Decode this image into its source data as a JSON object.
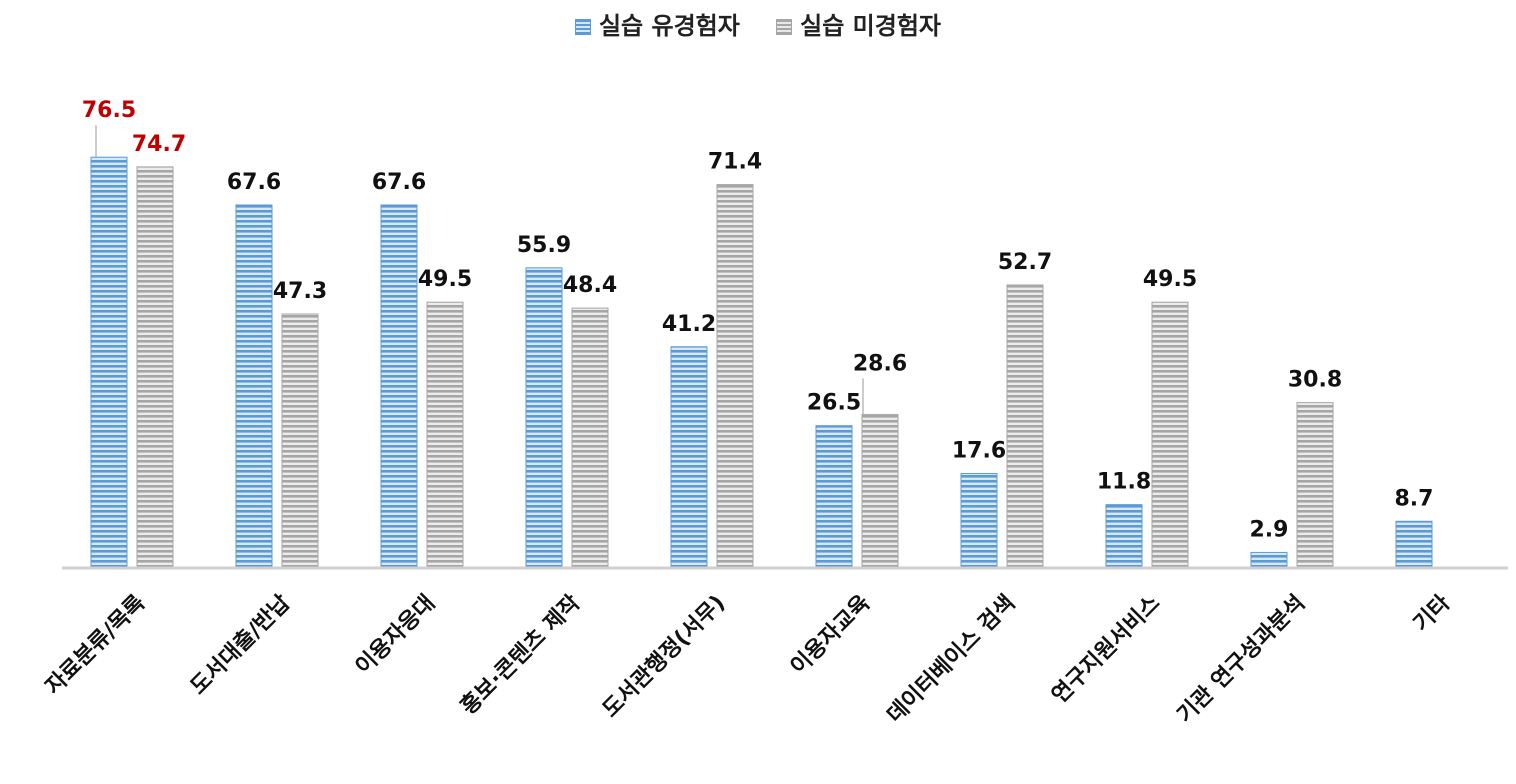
{
  "chart_data": {
    "type": "bar",
    "categories": [
      "자료분류/목록",
      "도서대출/반납",
      "이용자응대",
      "홍보·콘텐츠 제작",
      "도서관행정(서무)",
      "이용자교육",
      "데이터베이스 검색",
      "연구지원서비스",
      "기관 연구성과분석",
      "기타"
    ],
    "series": [
      {
        "name": "실습 유경험자",
        "color": "#5b9bd5",
        "values": [
          76.5,
          67.6,
          67.6,
          55.9,
          41.2,
          26.5,
          17.6,
          11.8,
          2.9,
          8.7
        ]
      },
      {
        "name": "실습 미경험자",
        "color": "#a6a6a6",
        "values": [
          74.7,
          47.3,
          49.5,
          48.4,
          71.4,
          28.6,
          52.7,
          49.5,
          30.8,
          null
        ]
      }
    ],
    "highlight_color": "#c00000",
    "highlighted_category": "자료분류/목록",
    "ylim": [
      0,
      80
    ],
    "legend_position": "top-center",
    "grid": false
  }
}
